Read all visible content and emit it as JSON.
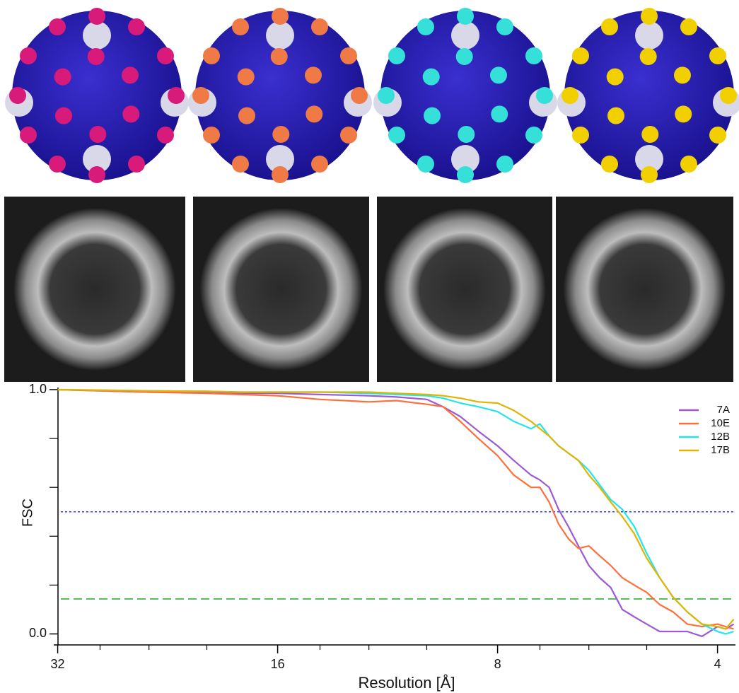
{
  "chart_data": {
    "type": "line",
    "xlabel": "Resolution [Å]",
    "ylabel": "FSC",
    "xscale": "log",
    "xlim": [
      32.4,
      3.78
    ],
    "xticks": [
      32,
      16,
      8,
      4
    ],
    "xminor": [
      28,
      24,
      20,
      14,
      12,
      10,
      7,
      6,
      5
    ],
    "ylim": [
      -0.045,
      1.0
    ],
    "yticks": [
      {
        "value": 1,
        "label": "1.0"
      },
      {
        "value": 0,
        "label": "0.0"
      }
    ],
    "yminor": [
      0.2,
      0.4,
      0.6,
      0.8
    ],
    "legend": "top-right",
    "hlines": [
      {
        "value": 0.5,
        "color": "#2a3cff",
        "style": "dotted"
      },
      {
        "value": 0.143,
        "color": "#22a822",
        "style": "dashed"
      }
    ],
    "x": [
      32,
      28,
      24,
      20,
      18,
      16,
      14,
      12,
      11,
      10,
      9.5,
      9,
      8.5,
      8,
      7.6,
      7.2,
      7,
      6.8,
      6.6,
      6.4,
      6.2,
      6,
      5.8,
      5.6,
      5.4,
      5.2,
      5,
      4.8,
      4.6,
      4.4,
      4.2,
      4,
      3.9,
      3.8
    ],
    "series": [
      {
        "name": "7A",
        "color": "#9b59d6",
        "values": [
          1.0,
          0.995,
          0.99,
          0.99,
          0.985,
          0.985,
          0.98,
          0.975,
          0.97,
          0.96,
          0.93,
          0.89,
          0.83,
          0.77,
          0.71,
          0.65,
          0.63,
          0.6,
          0.51,
          0.44,
          0.36,
          0.28,
          0.23,
          0.19,
          0.1,
          0.07,
          0.04,
          0.01,
          0.01,
          0.01,
          -0.01,
          0.03,
          0.02,
          0.04
        ]
      },
      {
        "name": "10E",
        "color": "#ff6f3c",
        "values": [
          1.0,
          0.995,
          0.99,
          0.985,
          0.98,
          0.975,
          0.96,
          0.95,
          0.955,
          0.94,
          0.93,
          0.87,
          0.8,
          0.73,
          0.65,
          0.6,
          0.6,
          0.54,
          0.45,
          0.39,
          0.35,
          0.36,
          0.32,
          0.28,
          0.23,
          0.2,
          0.17,
          0.12,
          0.09,
          0.04,
          0.03,
          0.04,
          0.03,
          0.02
        ]
      },
      {
        "name": "12B",
        "color": "#22e5f0",
        "values": [
          1.0,
          0.998,
          0.995,
          0.993,
          0.99,
          0.99,
          0.99,
          0.985,
          0.98,
          0.975,
          0.965,
          0.945,
          0.93,
          0.91,
          0.87,
          0.84,
          0.86,
          0.81,
          0.77,
          0.74,
          0.71,
          0.67,
          0.61,
          0.55,
          0.51,
          0.44,
          0.33,
          0.23,
          0.15,
          0.09,
          0.04,
          0.01,
          0.0,
          0.01
        ]
      },
      {
        "name": "17B",
        "color": "#e0b400",
        "values": [
          1.0,
          0.998,
          0.995,
          0.993,
          0.99,
          0.99,
          0.99,
          0.99,
          0.985,
          0.98,
          0.975,
          0.965,
          0.95,
          0.945,
          0.915,
          0.87,
          0.84,
          0.81,
          0.77,
          0.74,
          0.71,
          0.65,
          0.6,
          0.54,
          0.48,
          0.41,
          0.31,
          0.23,
          0.15,
          0.09,
          0.04,
          0.03,
          0.02,
          0.06
        ]
      }
    ]
  }
}
